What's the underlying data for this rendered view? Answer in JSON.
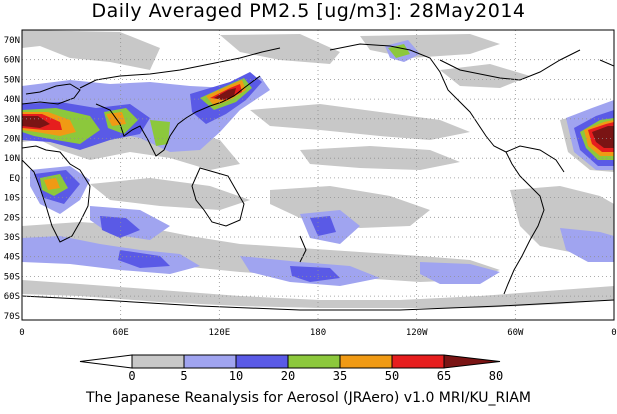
{
  "title": "Daily Averaged PM2.5 [ug/m3]: 28May2014",
  "credit": "The Japanese Reanalysis for Aerosol (JRAero) v1.0 MRI/KU_RIAM",
  "map": {
    "lat_labels": [
      "70N",
      "60N",
      "50N",
      "40N",
      "30N",
      "20N",
      "10N",
      "EQ",
      "10S",
      "20S",
      "30S",
      "40S",
      "50S",
      "60S",
      "70S"
    ],
    "lon_labels": [
      "0",
      "60E",
      "120E",
      "180",
      "120W",
      "60W",
      "0"
    ],
    "grid": true
  },
  "colorbar": {
    "levels": [
      "0",
      "5",
      "10",
      "20",
      "35",
      "50",
      "65",
      "80"
    ],
    "colors": [
      "#ffffff",
      "#c8c8c8",
      "#a0a4f0",
      "#5a5ae6",
      "#8cc83c",
      "#f09a14",
      "#e61e1e",
      "#7a1414"
    ]
  }
}
